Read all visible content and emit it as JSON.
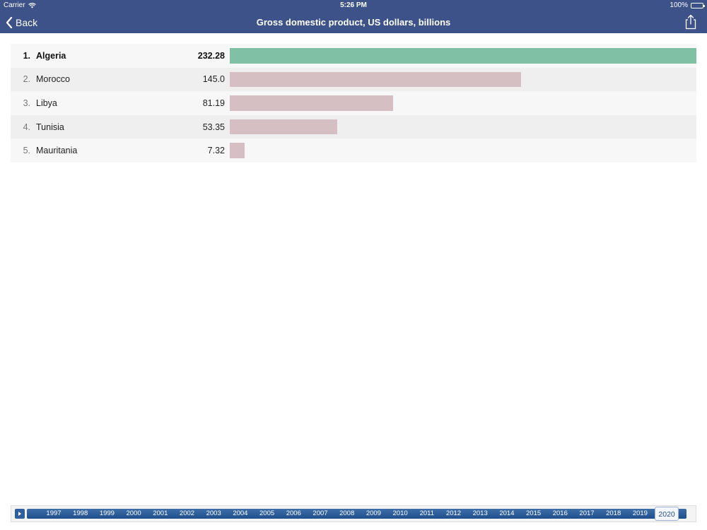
{
  "status": {
    "carrier": "Carrier",
    "time": "5:26 PM",
    "battery": "100%"
  },
  "nav": {
    "back_label": "Back",
    "title": "Gross domestic product, US dollars, billions"
  },
  "chart_data": {
    "type": "bar",
    "title": "Gross domestic product, US dollars, billions",
    "categories": [
      "Algeria",
      "Morocco",
      "Libya",
      "Tunisia",
      "Mauritania"
    ],
    "values": [
      232.28,
      145.0,
      81.19,
      53.35,
      7.32
    ],
    "value_labels": [
      "232.28",
      "145.0",
      "81.19",
      "53.35",
      "7.32"
    ],
    "ranks": [
      "1.",
      "2.",
      "3.",
      "4.",
      "5."
    ],
    "colors": {
      "top": "#80c0a4",
      "other": "#d6bfc3"
    }
  },
  "timeline": {
    "years": [
      "1997",
      "1998",
      "1999",
      "2000",
      "2001",
      "2002",
      "2003",
      "2004",
      "2005",
      "2006",
      "2007",
      "2008",
      "2009",
      "2010",
      "2011",
      "2012",
      "2013",
      "2014",
      "2015",
      "2016",
      "2017",
      "2018",
      "2019",
      "2020"
    ],
    "selected": "2020"
  },
  "colors": {
    "header": "#3c5289",
    "accent": "#2f5f9e"
  }
}
